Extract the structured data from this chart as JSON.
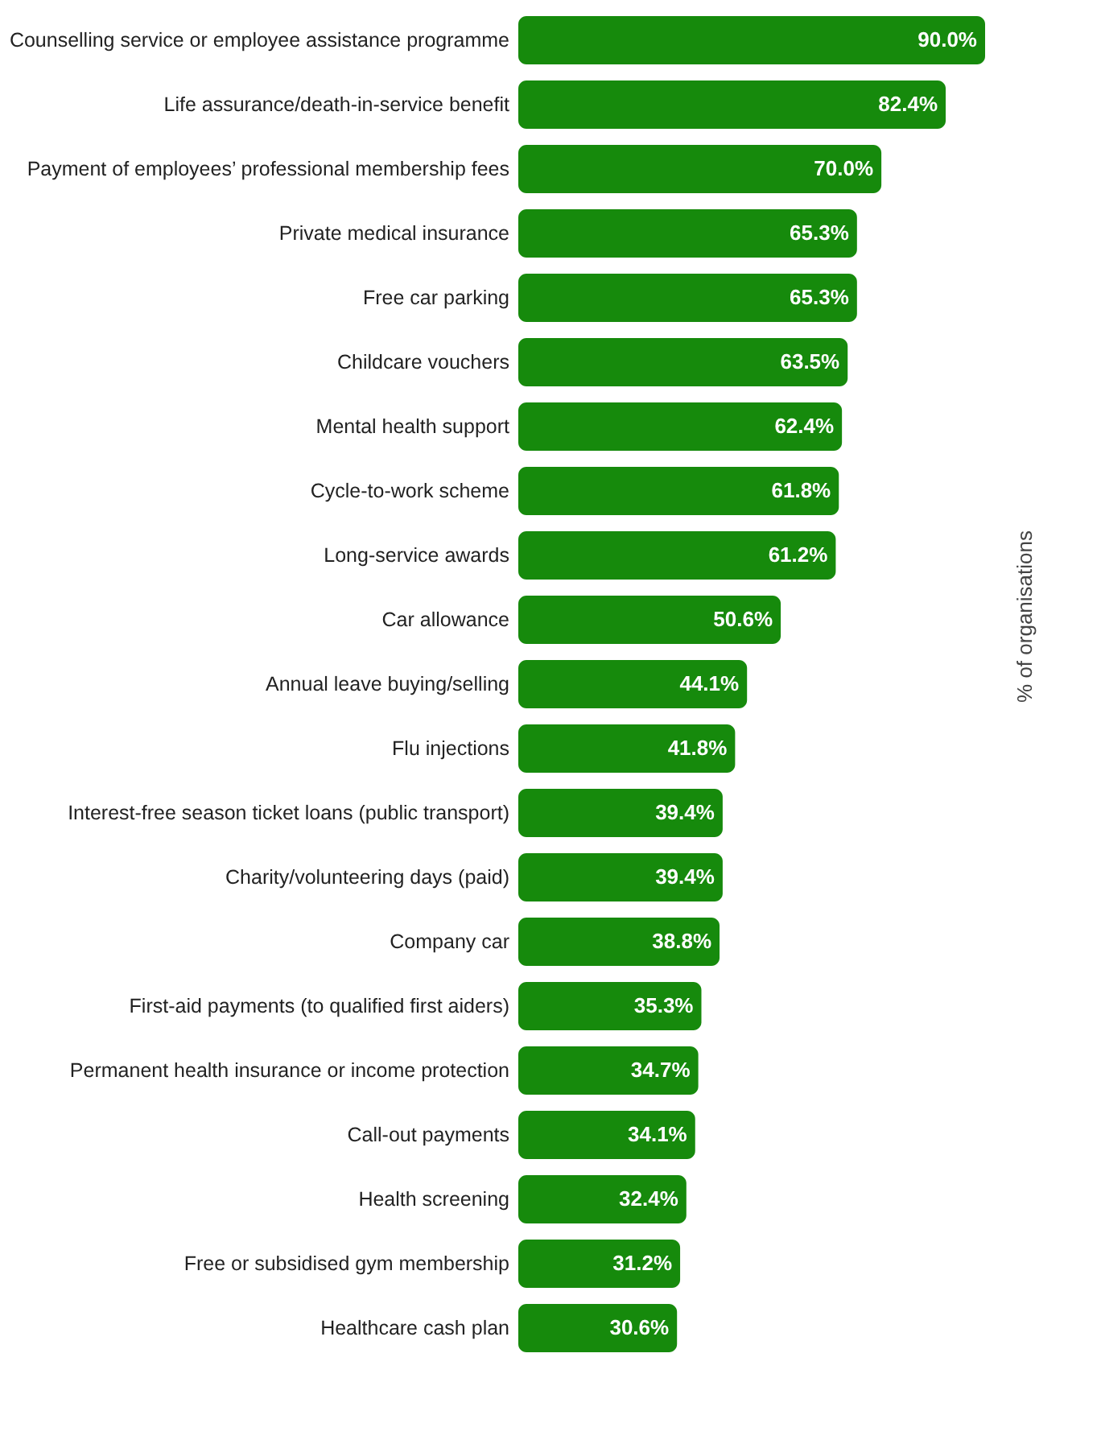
{
  "chart_data": {
    "type": "bar",
    "orientation": "horizontal",
    "y2label": "% of organisations",
    "categories": [
      "Counselling service or employee assistance programme",
      "Life assurance/death-in-service benefit",
      "Payment of employees’ professional membership fees",
      "Private medical insurance",
      "Free car parking",
      "Childcare vouchers",
      "Mental health support",
      "Cycle-to-work scheme",
      "Long-service awards",
      "Car allowance",
      "Annual leave buying/selling",
      "Flu injections",
      "Interest-free season ticket loans (public transport)",
      "Charity/volunteering days (paid)",
      "Company car",
      "First-aid payments (to qualified first aiders)",
      "Permanent health insurance or income protection",
      "Call-out payments",
      "Health screening",
      "Free or subsidised gym membership",
      "Healthcare cash plan"
    ],
    "values": [
      90.0,
      82.4,
      70.0,
      65.3,
      65.3,
      63.5,
      62.4,
      61.8,
      61.2,
      50.6,
      44.1,
      41.8,
      39.4,
      39.4,
      38.8,
      35.3,
      34.7,
      34.1,
      32.4,
      31.2,
      30.6
    ],
    "value_labels": [
      "90.0%",
      "82.4%",
      "70.0%",
      "65.3%",
      "65.3%",
      "63.5%",
      "62.4%",
      "61.8%",
      "61.2%",
      "50.6%",
      "44.1%",
      "41.8%",
      "39.4%",
      "39.4%",
      "38.8%",
      "35.3%",
      "34.7%",
      "34.1%",
      "32.4%",
      "31.2%",
      "30.6%"
    ],
    "color": "#168a0c",
    "grid": false
  }
}
